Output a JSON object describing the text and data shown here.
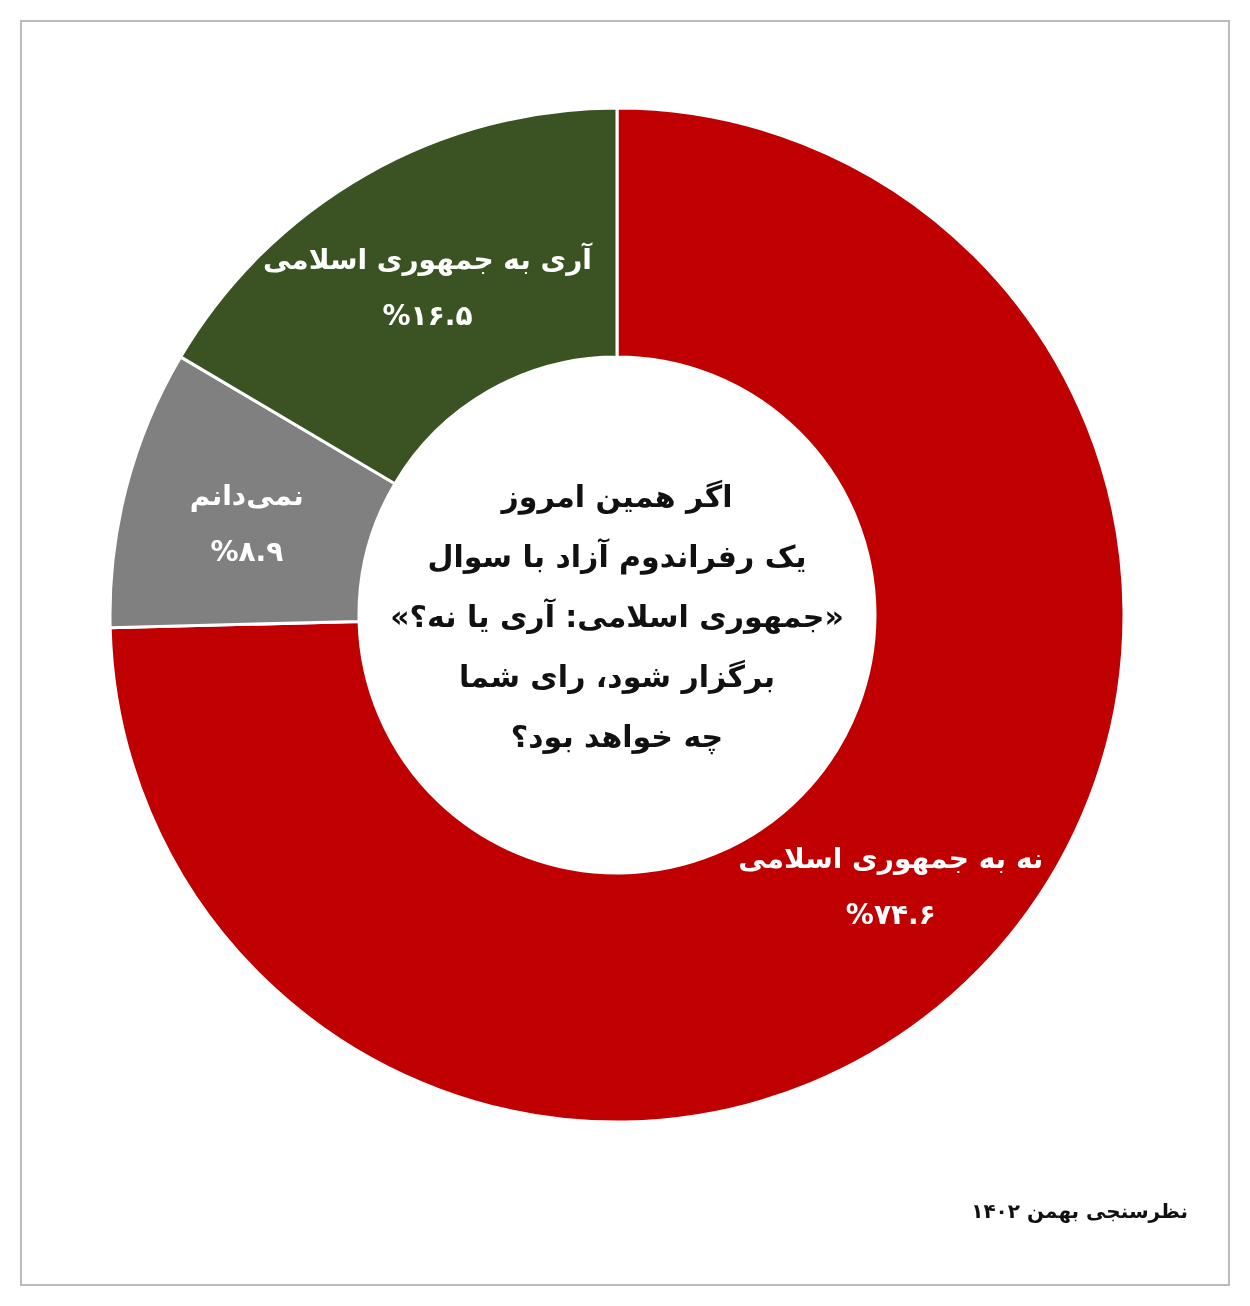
{
  "chart_data": {
    "type": "donut",
    "categories": [
      "نه به جمهوری اسلامی",
      "نمی‌دانم",
      "آری به جمهوری اسلامی"
    ],
    "values": [
      74.6,
      8.9,
      16.5
    ],
    "colors": [
      "#c00000",
      "#808080",
      "#3b5323"
    ],
    "value_labels": [
      "%۷۴.۶",
      "%۸.۹",
      "%۱۶.۵"
    ],
    "subtitle": "اگر همین امروز\nیک رفراندوم آزاد با سوال\n«جمهوری اسلامی: آری یا نه؟»\nبرگزار شود، رای شما\nچه خواهد بود؟",
    "annotations": [
      "نظرسنجی بهمن ۱۴۰۲"
    ]
  }
}
